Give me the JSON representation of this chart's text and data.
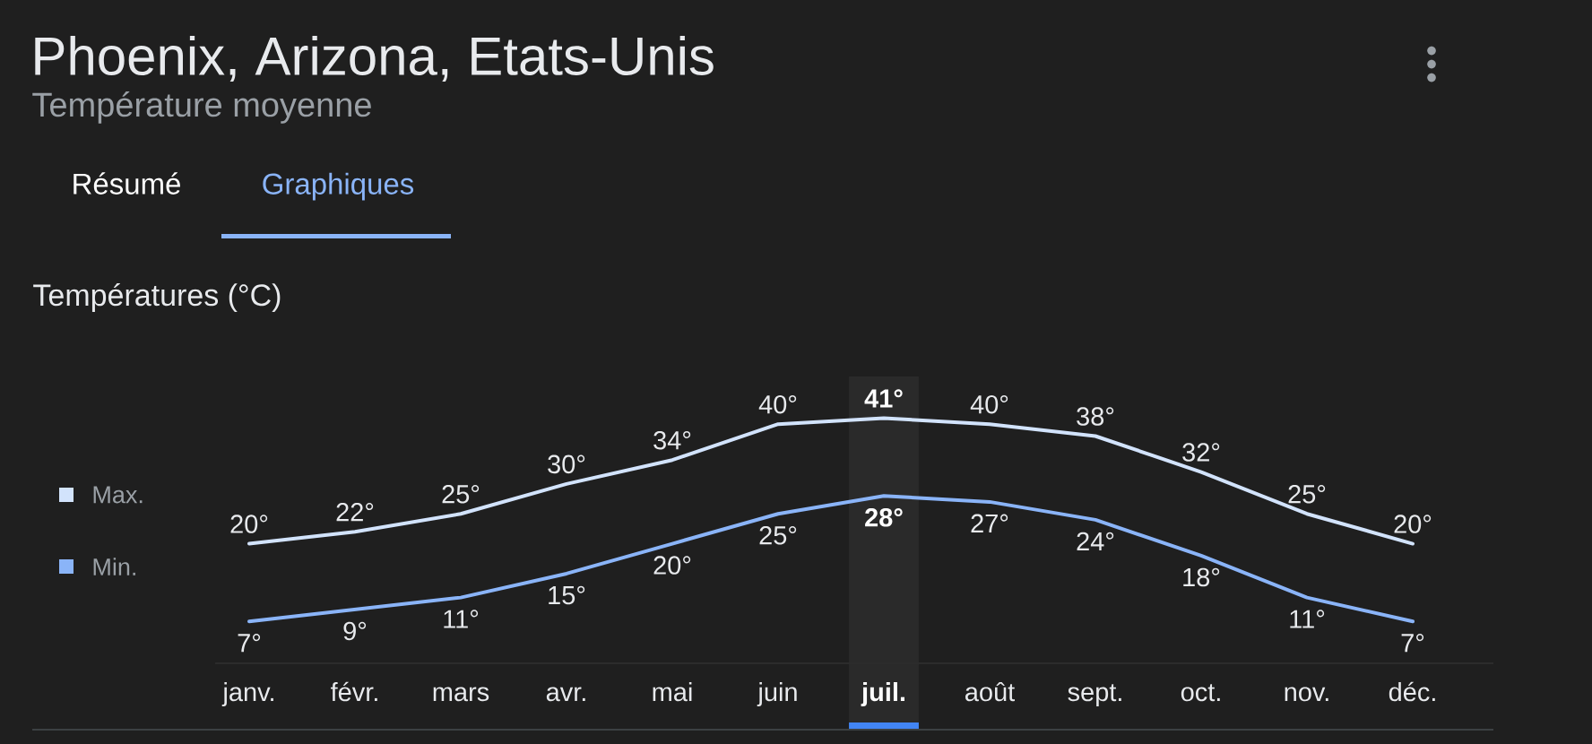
{
  "chart_data": {
    "type": "line",
    "title": "Phoenix, Arizona, Etats-Unis",
    "subtitle": "Température moyenne",
    "ylabel": "Températures (°C)",
    "annotations": [
      "Résumé",
      "Graphiques"
    ],
    "categories": [
      "janv.",
      "févr.",
      "mars",
      "avr.",
      "mai",
      "juin",
      "juil.",
      "août",
      "sept.",
      "oct.",
      "nov.",
      "déc."
    ],
    "series": [
      {
        "name": "Max.",
        "color": "#d2e3fc",
        "values": [
          20,
          22,
          25,
          30,
          34,
          40,
          41,
          40,
          38,
          32,
          25,
          20
        ],
        "value_labels": [
          "20°",
          "22°",
          "25°",
          "30°",
          "34°",
          "40°",
          "41°",
          "40°",
          "38°",
          "32°",
          "25°",
          "20°"
        ]
      },
      {
        "name": "Min.",
        "color": "#8ab4f8",
        "values": [
          7,
          9,
          11,
          15,
          20,
          25,
          28,
          27,
          24,
          18,
          11,
          7
        ],
        "value_labels": [
          "7°",
          "9°",
          "11°",
          "15°",
          "20°",
          "25°",
          "28°",
          "27°",
          "24°",
          "18°",
          "11°",
          "7°"
        ]
      }
    ],
    "bands": [
      {
        "axis": "x",
        "from": "juil.",
        "to": "juil.",
        "color": "#2a2a2a"
      }
    ],
    "legend": "left",
    "line_style": "solid"
  }
}
